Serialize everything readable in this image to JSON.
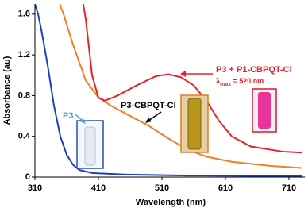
{
  "chart_data": {
    "type": "line",
    "x_label": "Wavelength (nm)",
    "y_label": "Absorbance (au)",
    "xlim": [
      310,
      735
    ],
    "xticks": [
      310,
      410,
      510,
      610,
      710
    ],
    "ylim": [
      0,
      1.7
    ],
    "yticks": [
      0,
      0.4,
      0.8,
      1.2,
      1.6
    ],
    "series": [
      {
        "name": "P3",
        "color": "#1f3fbf",
        "x": [
          310,
          315,
          320,
          330,
          340,
          350,
          360,
          370,
          380,
          400,
          450,
          550,
          650,
          730
        ],
        "values": [
          1.7,
          1.6,
          1.45,
          1.1,
          0.7,
          0.4,
          0.22,
          0.12,
          0.07,
          0.04,
          0.025,
          0.015,
          0.012,
          0.01
        ]
      },
      {
        "name": "P3-CBPQT-Cl",
        "color": "#f07f27",
        "x": [
          349,
          355,
          370,
          390,
          410,
          430,
          460,
          490,
          520,
          550,
          580,
          620,
          680,
          730
        ],
        "values": [
          1.7,
          1.6,
          1.3,
          0.95,
          0.78,
          0.7,
          0.6,
          0.5,
          0.38,
          0.27,
          0.2,
          0.15,
          0.11,
          0.09
        ]
      },
      {
        "name": "P3 + P1-CBPQT-Cl",
        "color": "#e8202a",
        "x": [
          386,
          390,
          400,
          410,
          420,
          440,
          470,
          500,
          520,
          540,
          560,
          580,
          600,
          620,
          650,
          700,
          730
        ],
        "values": [
          1.7,
          1.55,
          1.0,
          0.78,
          0.75,
          0.8,
          0.9,
          0.99,
          1.01,
          0.98,
          0.9,
          0.75,
          0.55,
          0.4,
          0.3,
          0.25,
          0.24
        ]
      }
    ],
    "lambda_label": {
      "symbol": "λ",
      "sub": "max",
      "text": " = 520 nm"
    }
  }
}
